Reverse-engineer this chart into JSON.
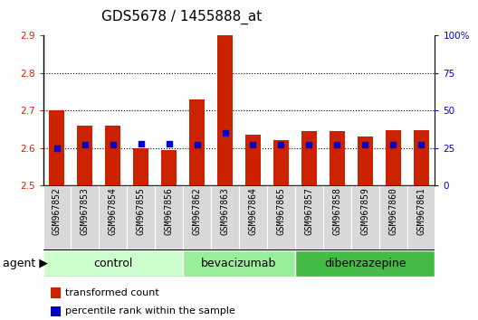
{
  "title": "GDS5678 / 1455888_at",
  "samples": [
    "GSM967852",
    "GSM967853",
    "GSM967854",
    "GSM967855",
    "GSM967856",
    "GSM967862",
    "GSM967863",
    "GSM967864",
    "GSM967865",
    "GSM967857",
    "GSM967858",
    "GSM967859",
    "GSM967860",
    "GSM967861"
  ],
  "transformed_count": [
    2.7,
    2.66,
    2.66,
    2.6,
    2.595,
    2.73,
    2.9,
    2.635,
    2.62,
    2.645,
    2.645,
    2.63,
    2.648,
    2.648
  ],
  "percentile_rank": [
    25,
    27,
    27,
    28,
    28,
    27,
    35,
    27,
    27,
    27,
    27,
    27,
    27,
    27
  ],
  "ylim_left": [
    2.5,
    2.9
  ],
  "ylim_right": [
    0,
    100
  ],
  "yticks_left": [
    2.5,
    2.6,
    2.7,
    2.8,
    2.9
  ],
  "yticks_right": [
    0,
    25,
    50,
    75,
    100
  ],
  "ytick_labels_right": [
    "0",
    "25",
    "50",
    "75",
    "100%"
  ],
  "groups": [
    {
      "name": "control",
      "start": 0,
      "end": 5,
      "color": "#ccffcc"
    },
    {
      "name": "bevacizumab",
      "start": 5,
      "end": 9,
      "color": "#99ee99"
    },
    {
      "name": "dibenzazepine",
      "start": 9,
      "end": 14,
      "color": "#44bb44"
    }
  ],
  "bar_color": "#cc2200",
  "dot_color": "#0000cc",
  "bar_width": 0.55,
  "background_color": "#ffffff",
  "sample_box_color": "#d8d8d8",
  "agent_label": "agent",
  "legend_items": [
    {
      "label": "transformed count",
      "color": "#cc2200"
    },
    {
      "label": "percentile rank within the sample",
      "color": "#0000cc"
    }
  ],
  "tick_color_left": "#cc2200",
  "tick_color_right": "#0000cc",
  "title_fontsize": 11,
  "tick_fontsize": 7.5,
  "sample_fontsize": 7,
  "group_fontsize": 9,
  "legend_fontsize": 8
}
